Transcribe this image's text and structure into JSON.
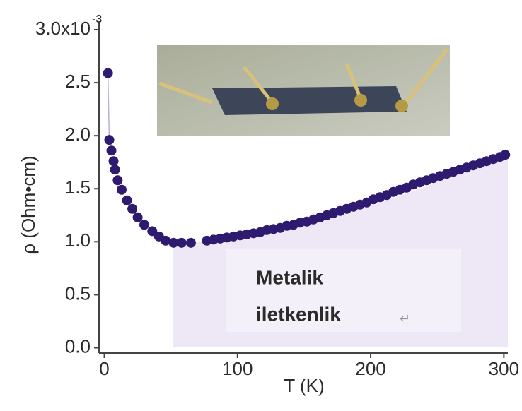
{
  "chart_data": {
    "type": "scatter",
    "x_label": "T (K)",
    "y_label": "ρ (Ohm•cm)",
    "y_exponent": "-3",
    "annotation": [
      "Metalik",
      "iletkenlik"
    ],
    "annotation_mark": "↵",
    "color": "#2e1a6e",
    "xlim": [
      -4,
      303
    ],
    "ylim": [
      -0.05,
      3.08
    ],
    "xticks": [
      0,
      100,
      200,
      300
    ],
    "yticks": [
      {
        "value": 0,
        "label": "0.0"
      },
      0.5,
      {
        "value": 1,
        "label": "1.0"
      },
      1.5,
      {
        "value": 2,
        "label": "2.0"
      },
      2.5,
      {
        "value": 3,
        "label": "3.0x10"
      }
    ],
    "x": [
      2.7,
      3.7,
      5.3,
      6.9,
      8,
      10,
      13,
      17,
      21,
      25,
      30,
      36,
      41,
      46,
      52,
      58,
      65,
      77,
      82,
      87,
      92,
      97,
      102,
      107,
      112,
      117,
      122,
      127,
      132,
      137,
      142,
      147,
      152,
      157,
      162,
      167,
      172,
      177,
      182,
      187,
      192,
      197,
      202,
      207,
      212,
      217,
      222,
      227,
      232,
      237,
      242,
      247,
      252,
      257,
      262,
      267,
      272,
      277,
      282,
      287,
      292,
      297,
      301
    ],
    "values": [
      2.59,
      1.96,
      1.86,
      1.76,
      1.68,
      1.58,
      1.49,
      1.39,
      1.31,
      1.23,
      1.16,
      1.1,
      1.05,
      1.01,
      0.99,
      0.99,
      0.99,
      1.01,
      1.02,
      1.03,
      1.04,
      1.05,
      1.06,
      1.07,
      1.08,
      1.09,
      1.11,
      1.12,
      1.13,
      1.15,
      1.16,
      1.18,
      1.19,
      1.21,
      1.23,
      1.25,
      1.27,
      1.29,
      1.31,
      1.33,
      1.35,
      1.37,
      1.4,
      1.42,
      1.44,
      1.47,
      1.49,
      1.51,
      1.54,
      1.56,
      1.58,
      1.6,
      1.62,
      1.64,
      1.66,
      1.68,
      1.7,
      1.72,
      1.74,
      1.76,
      1.78,
      1.8,
      1.82
    ]
  }
}
